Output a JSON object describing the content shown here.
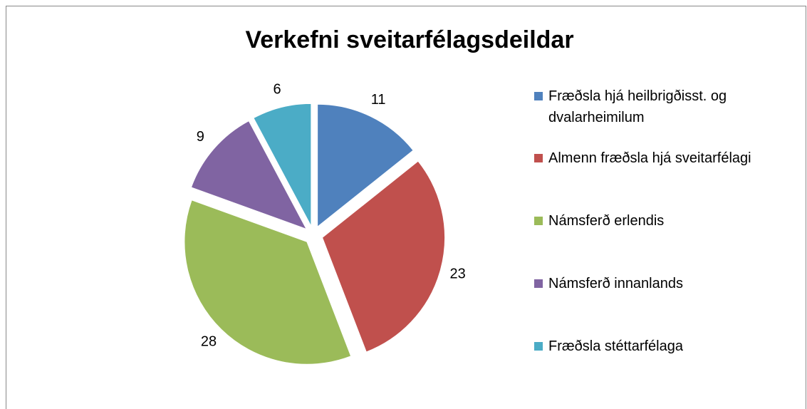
{
  "chart_data": {
    "type": "pie",
    "title": "Verkefni sveitarfélagsdeildar",
    "categories": [
      "Fræðsla hjá heilbrigðisst. og dvalarheimilum",
      "Almenn fræðsla hjá sveitarfélagi",
      "Námsferð erlendis",
      "Námsferð innanlands",
      "Fræðsla stéttarfélaga"
    ],
    "values": [
      11,
      23,
      28,
      9,
      6
    ],
    "colors": [
      "#4f81bd",
      "#c0504d",
      "#9bbb59",
      "#8064a2",
      "#4bacc6"
    ],
    "legend": "right"
  }
}
